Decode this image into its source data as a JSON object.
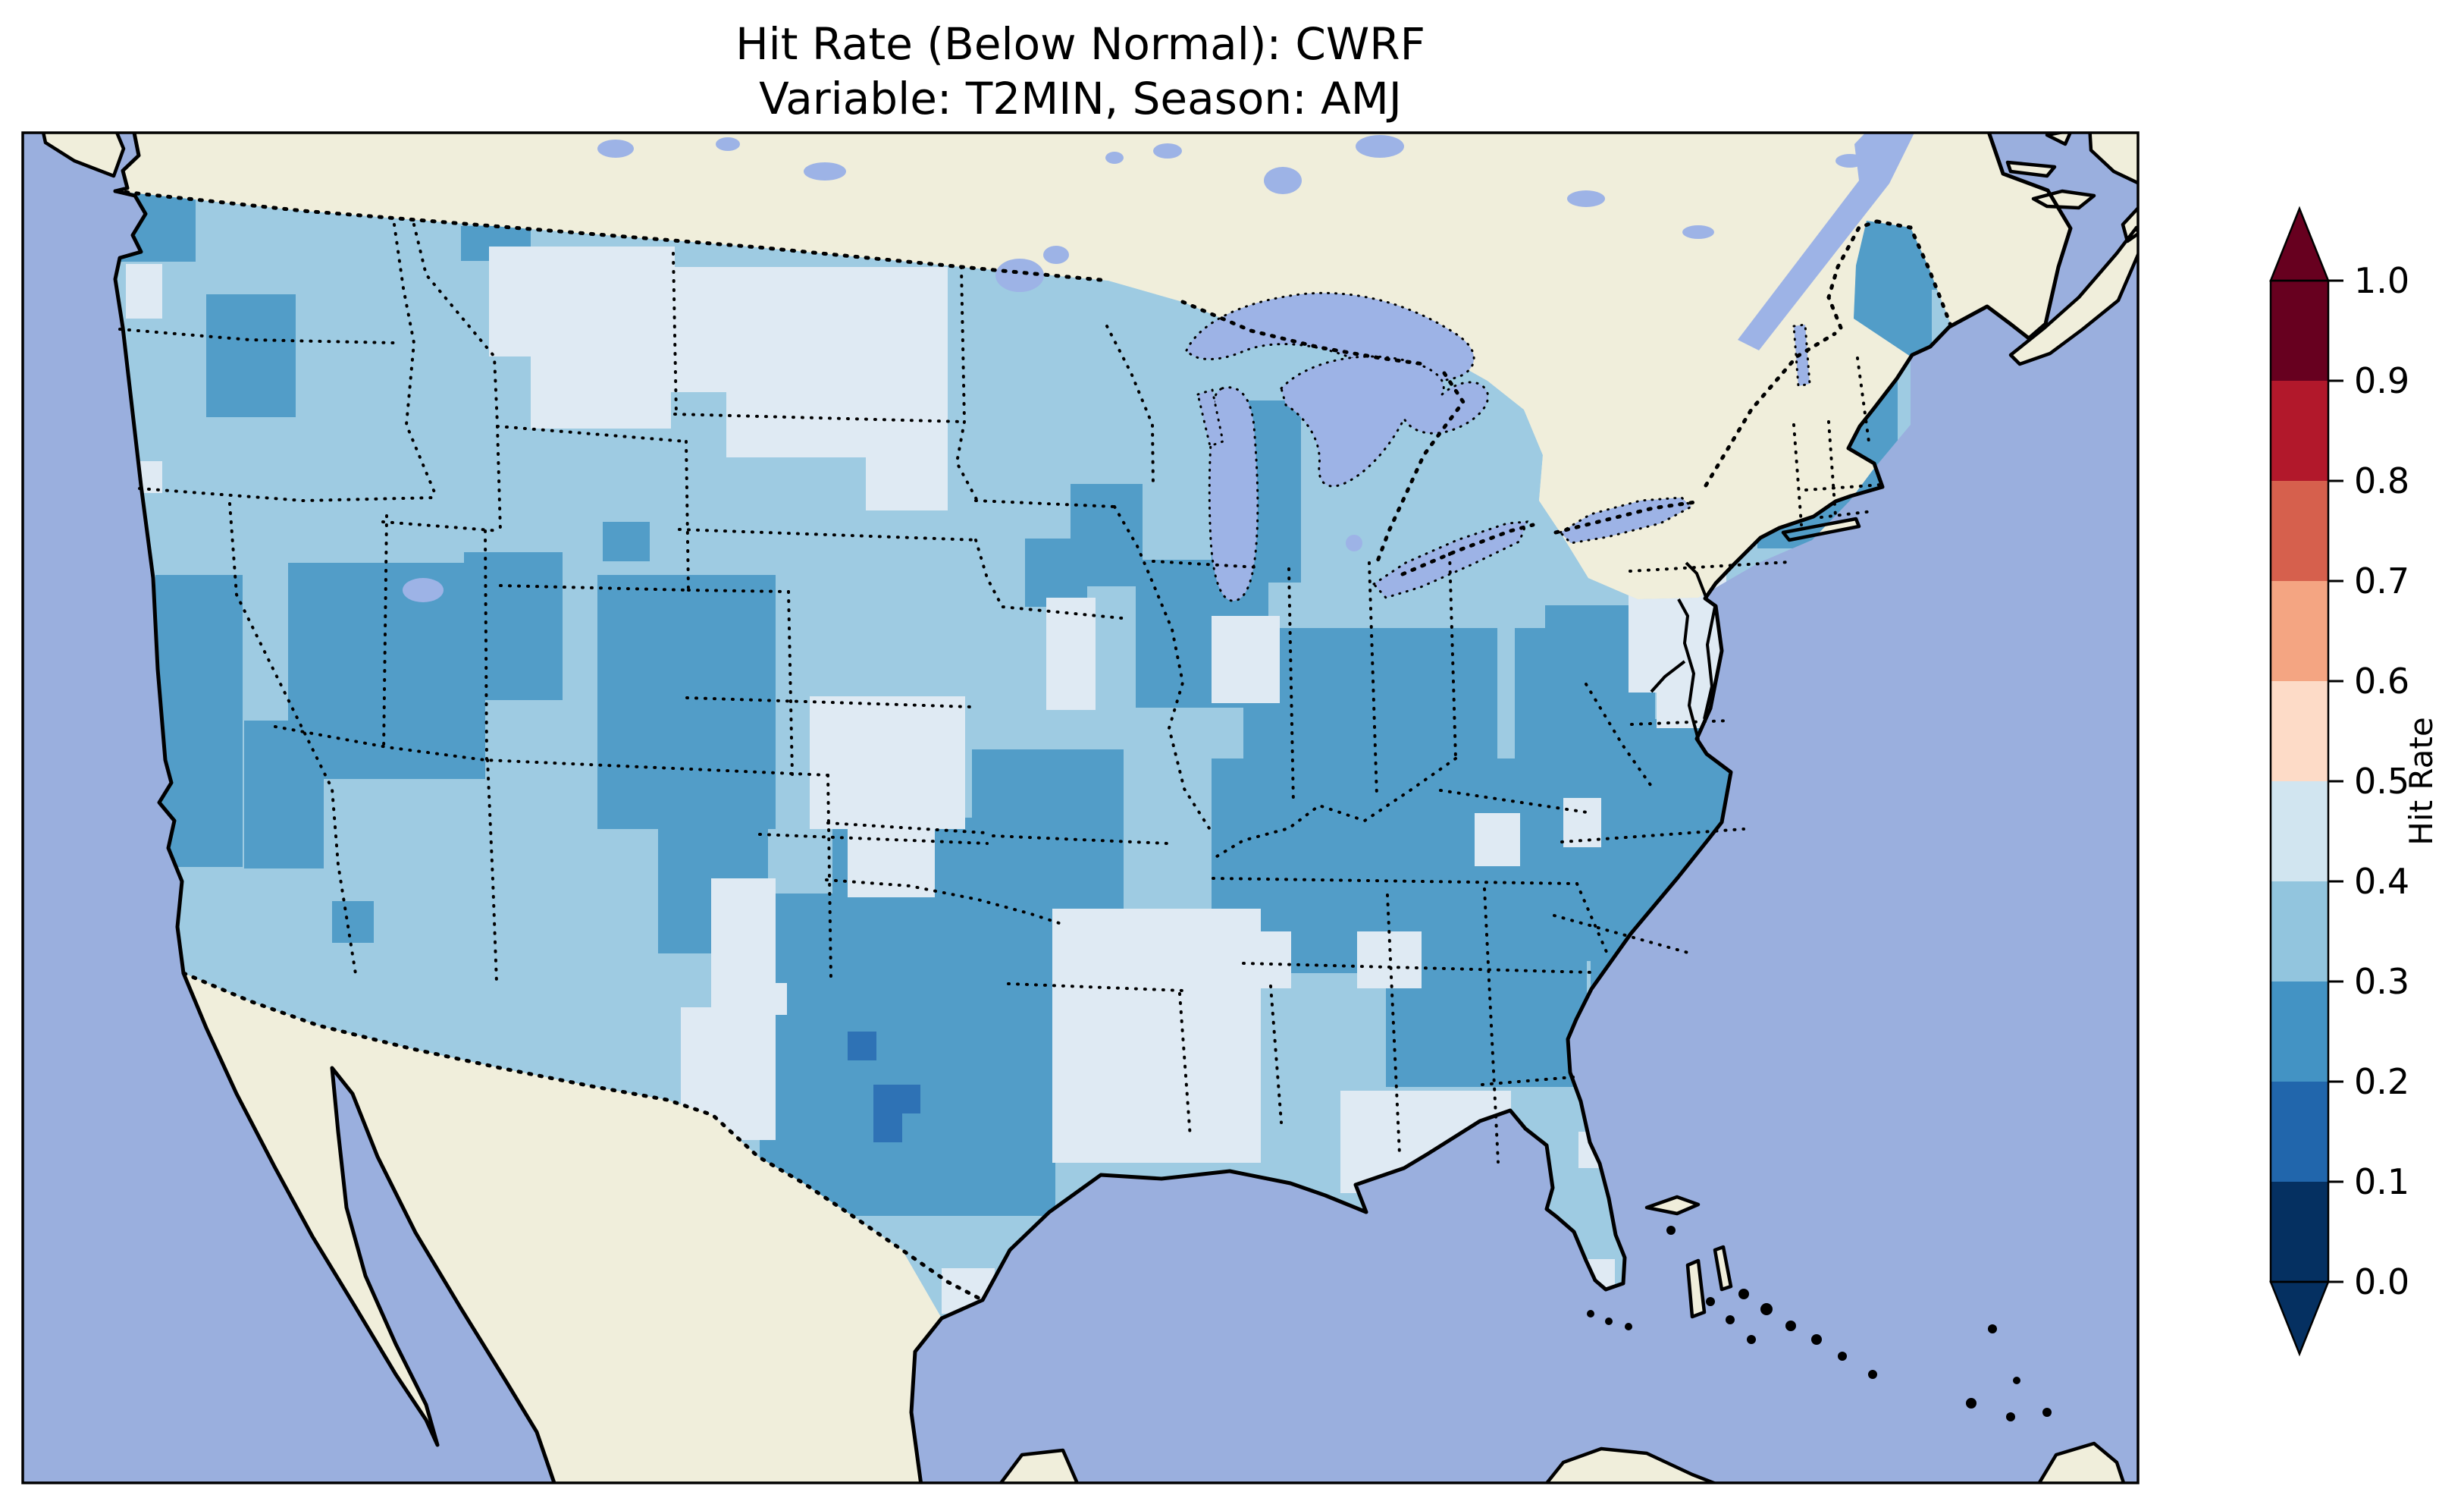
{
  "title": {
    "line1": "Hit Rate (Below Normal): CWRF",
    "line2": "Variable: T2MIN, Season: AMJ"
  },
  "colorbar": {
    "label": "Hit Rate",
    "ticks_top_down": [
      "1.0",
      "0.9",
      "0.8",
      "0.7",
      "0.6",
      "0.5",
      "0.4",
      "0.3",
      "0.2",
      "0.1",
      "0.0"
    ],
    "bins_bottom_up": [
      {
        "range": "0.0-0.1",
        "color": "#053061"
      },
      {
        "range": "0.1-0.2",
        "color": "#2166ac"
      },
      {
        "range": "0.2-0.3",
        "color": "#4393c4"
      },
      {
        "range": "0.3-0.4",
        "color": "#92c5de"
      },
      {
        "range": "0.4-0.5",
        "color": "#d1e5f0"
      },
      {
        "range": "0.5-0.6",
        "color": "#fddbc7"
      },
      {
        "range": "0.6-0.7",
        "color": "#f4a582"
      },
      {
        "range": "0.7-0.8",
        "color": "#d6604d"
      },
      {
        "range": "0.8-0.9",
        "color": "#b2182b"
      },
      {
        "range": "0.9-1.0",
        "color": "#67001f"
      }
    ],
    "extend_over_color": "#67001f",
    "extend_under_color": "#053061"
  },
  "map": {
    "ocean_color": "#9aafde",
    "land_color": "#f0eedb",
    "lake_color": "#9db3e6",
    "coastline_color": "#000000",
    "border_style": "dotted black (states and countries)",
    "base_bin": "0.3-0.4",
    "bin_colors": {
      "0.0-0.1": "#053061",
      "0.1-0.2": "#2e72b5",
      "0.2-0.3": "#529dc8",
      "0.3-0.4": "#9ecbe2",
      "0.4-0.5": "#dfeaf3",
      "0.5-0.6": "#fddbc7"
    },
    "patches": [
      [
        148,
        215,
        110,
        130,
        "0.2-0.3"
      ],
      [
        272,
        388,
        118,
        162,
        "0.2-0.3"
      ],
      [
        205,
        758,
        115,
        385,
        "0.2-0.3"
      ],
      [
        380,
        742,
        260,
        285,
        "0.2-0.3"
      ],
      [
        322,
        950,
        105,
        195,
        "0.2-0.3"
      ],
      [
        612,
        728,
        130,
        195,
        "0.2-0.3"
      ],
      [
        788,
        758,
        235,
        335,
        "0.2-0.3"
      ],
      [
        868,
        1092,
        145,
        165,
        "0.2-0.3"
      ],
      [
        438,
        1188,
        55,
        55,
        "0.2-0.3"
      ],
      [
        795,
        688,
        62,
        52,
        "0.2-0.3"
      ],
      [
        608,
        298,
        92,
        46,
        "0.2-0.3"
      ],
      [
        1352,
        710,
        82,
        90,
        "0.2-0.3"
      ],
      [
        1412,
        638,
        95,
        135,
        "0.2-0.3"
      ],
      [
        1598,
        528,
        118,
        240,
        "0.2-0.3"
      ],
      [
        1498,
        738,
        175,
        195,
        "0.2-0.3"
      ],
      [
        1640,
        828,
        335,
        235,
        "0.2-0.3"
      ],
      [
        1598,
        1000,
        465,
        265,
        "0.2-0.3"
      ],
      [
        1998,
        828,
        185,
        235,
        "0.2-0.3"
      ],
      [
        2038,
        798,
        125,
        205,
        "0.2-0.3"
      ],
      [
        2158,
        948,
        180,
        235,
        "0.2-0.3"
      ],
      [
        2048,
        1002,
        265,
        265,
        "0.2-0.3"
      ],
      [
        2098,
        1262,
        215,
        240,
        "0.2-0.3"
      ],
      [
        1828,
        1168,
        265,
        265,
        "0.2-0.3"
      ],
      [
        1678,
        1098,
        185,
        185,
        "0.2-0.3"
      ],
      [
        1282,
        988,
        200,
        215,
        "0.2-0.3"
      ],
      [
        1002,
        1178,
        390,
        425,
        "0.2-0.3"
      ],
      [
        1098,
        1078,
        235,
        125,
        "0.2-0.3"
      ],
      [
        1148,
        1118,
        205,
        105,
        "0.2-0.3"
      ],
      [
        1495,
        1335,
        82,
        62,
        "0.2-0.3"
      ],
      [
        2442,
        288,
        128,
        185,
        "0.2-0.3"
      ],
      [
        2318,
        468,
        185,
        255,
        "0.2-0.3"
      ],
      [
        2252,
        808,
        145,
        155,
        "0.2-0.3"
      ],
      [
        2388,
        688,
        105,
        125,
        "0.2-0.3"
      ],
      [
        1118,
        1360,
        38,
        38,
        "0.1-0.2"
      ],
      [
        1152,
        1430,
        62,
        38,
        "0.1-0.2"
      ],
      [
        1152,
        1468,
        38,
        38,
        "0.1-0.2"
      ],
      [
        645,
        325,
        245,
        145,
        "0.4-0.5"
      ],
      [
        700,
        455,
        185,
        110,
        "0.4-0.5"
      ],
      [
        880,
        352,
        370,
        165,
        "0.4-0.5"
      ],
      [
        958,
        508,
        185,
        95,
        "0.4-0.5"
      ],
      [
        1142,
        438,
        108,
        235,
        "0.4-0.5"
      ],
      [
        166,
        348,
        48,
        72,
        "0.4-0.5"
      ],
      [
        172,
        608,
        42,
        42,
        "0.4-0.5"
      ],
      [
        1068,
        918,
        205,
        175,
        "0.4-0.5"
      ],
      [
        1118,
        1058,
        115,
        125,
        "0.4-0.5"
      ],
      [
        1380,
        788,
        65,
        148,
        "0.4-0.5"
      ],
      [
        938,
        1158,
        85,
        345,
        "0.4-0.5"
      ],
      [
        898,
        1328,
        65,
        145,
        "0.4-0.5"
      ],
      [
        1388,
        1198,
        275,
        335,
        "0.4-0.5"
      ],
      [
        1768,
        1438,
        225,
        135,
        "0.4-0.5"
      ],
      [
        2082,
        1492,
        45,
        48,
        "0.4-0.5"
      ],
      [
        2085,
        1660,
        45,
        45,
        "0.4-0.5"
      ],
      [
        2055,
        1698,
        95,
        28,
        "0.4-0.5"
      ],
      [
        2062,
        1052,
        50,
        65,
        "0.4-0.5"
      ],
      [
        2148,
        768,
        95,
        145,
        "0.4-0.5"
      ],
      [
        2185,
        875,
        95,
        85,
        "0.4-0.5"
      ],
      [
        2245,
        1378,
        75,
        115,
        "0.4-0.5"
      ],
      [
        2232,
        758,
        45,
        165,
        "0.4-0.5"
      ],
      [
        996,
        1296,
        42,
        42,
        "0.4-0.5"
      ],
      [
        2548,
        382,
        60,
        100,
        "0.3-0.4"
      ],
      [
        1242,
        1672,
        70,
        60,
        "0.4-0.5"
      ],
      [
        1598,
        812,
        90,
        115,
        "0.4-0.5"
      ],
      [
        1945,
        1072,
        60,
        70,
        "0.4-0.5"
      ],
      [
        1790,
        1228,
        85,
        75,
        "0.4-0.5"
      ],
      [
        1598,
        1228,
        105,
        75,
        "0.4-0.5"
      ]
    ]
  },
  "chart_data": {
    "type": "heatmap",
    "title": "Hit Rate (Below Normal): CWRF — Variable: T2MIN, Season: AMJ",
    "metric": "Hit Rate",
    "model": "CWRF",
    "variable": "T2MIN",
    "season": "AMJ",
    "category": "Below Normal",
    "colormap": "RdBu reversed, 10 discrete bins, extend arrows both ends",
    "colorbar_range": [
      0.0,
      1.0
    ],
    "colorbar_tick_step": 0.1,
    "value_summary": [
      {
        "region": "Most of CONUS (baseline)",
        "hit_rate": "0.3-0.4"
      },
      {
        "region": "Ohio Valley, KY/TN, VA/NC/SC/GA, N AL",
        "hit_rate": "0.2-0.3"
      },
      {
        "region": "Central/South Texas, Ozarks",
        "hit_rate": "0.2-0.3"
      },
      {
        "region": "Nevada/Utah/Colorado Rockies, Sierra Nevada, NE Oregon, Puget Sound",
        "hit_rate": "0.2-0.3"
      },
      {
        "region": "Maine, NH/VT, Adirondacks, N Pennsylvania, Lower Michigan",
        "hit_rate": "0.2-0.3"
      },
      {
        "region": "Eastern Montana, western North Dakota, central Kansas, west Texas, E Texas/Louisiana, Gulf coast",
        "hit_rate": "0.4-0.5"
      },
      {
        "region": "Few cells in central Texas",
        "hit_rate": "0.1-0.2"
      }
    ]
  }
}
